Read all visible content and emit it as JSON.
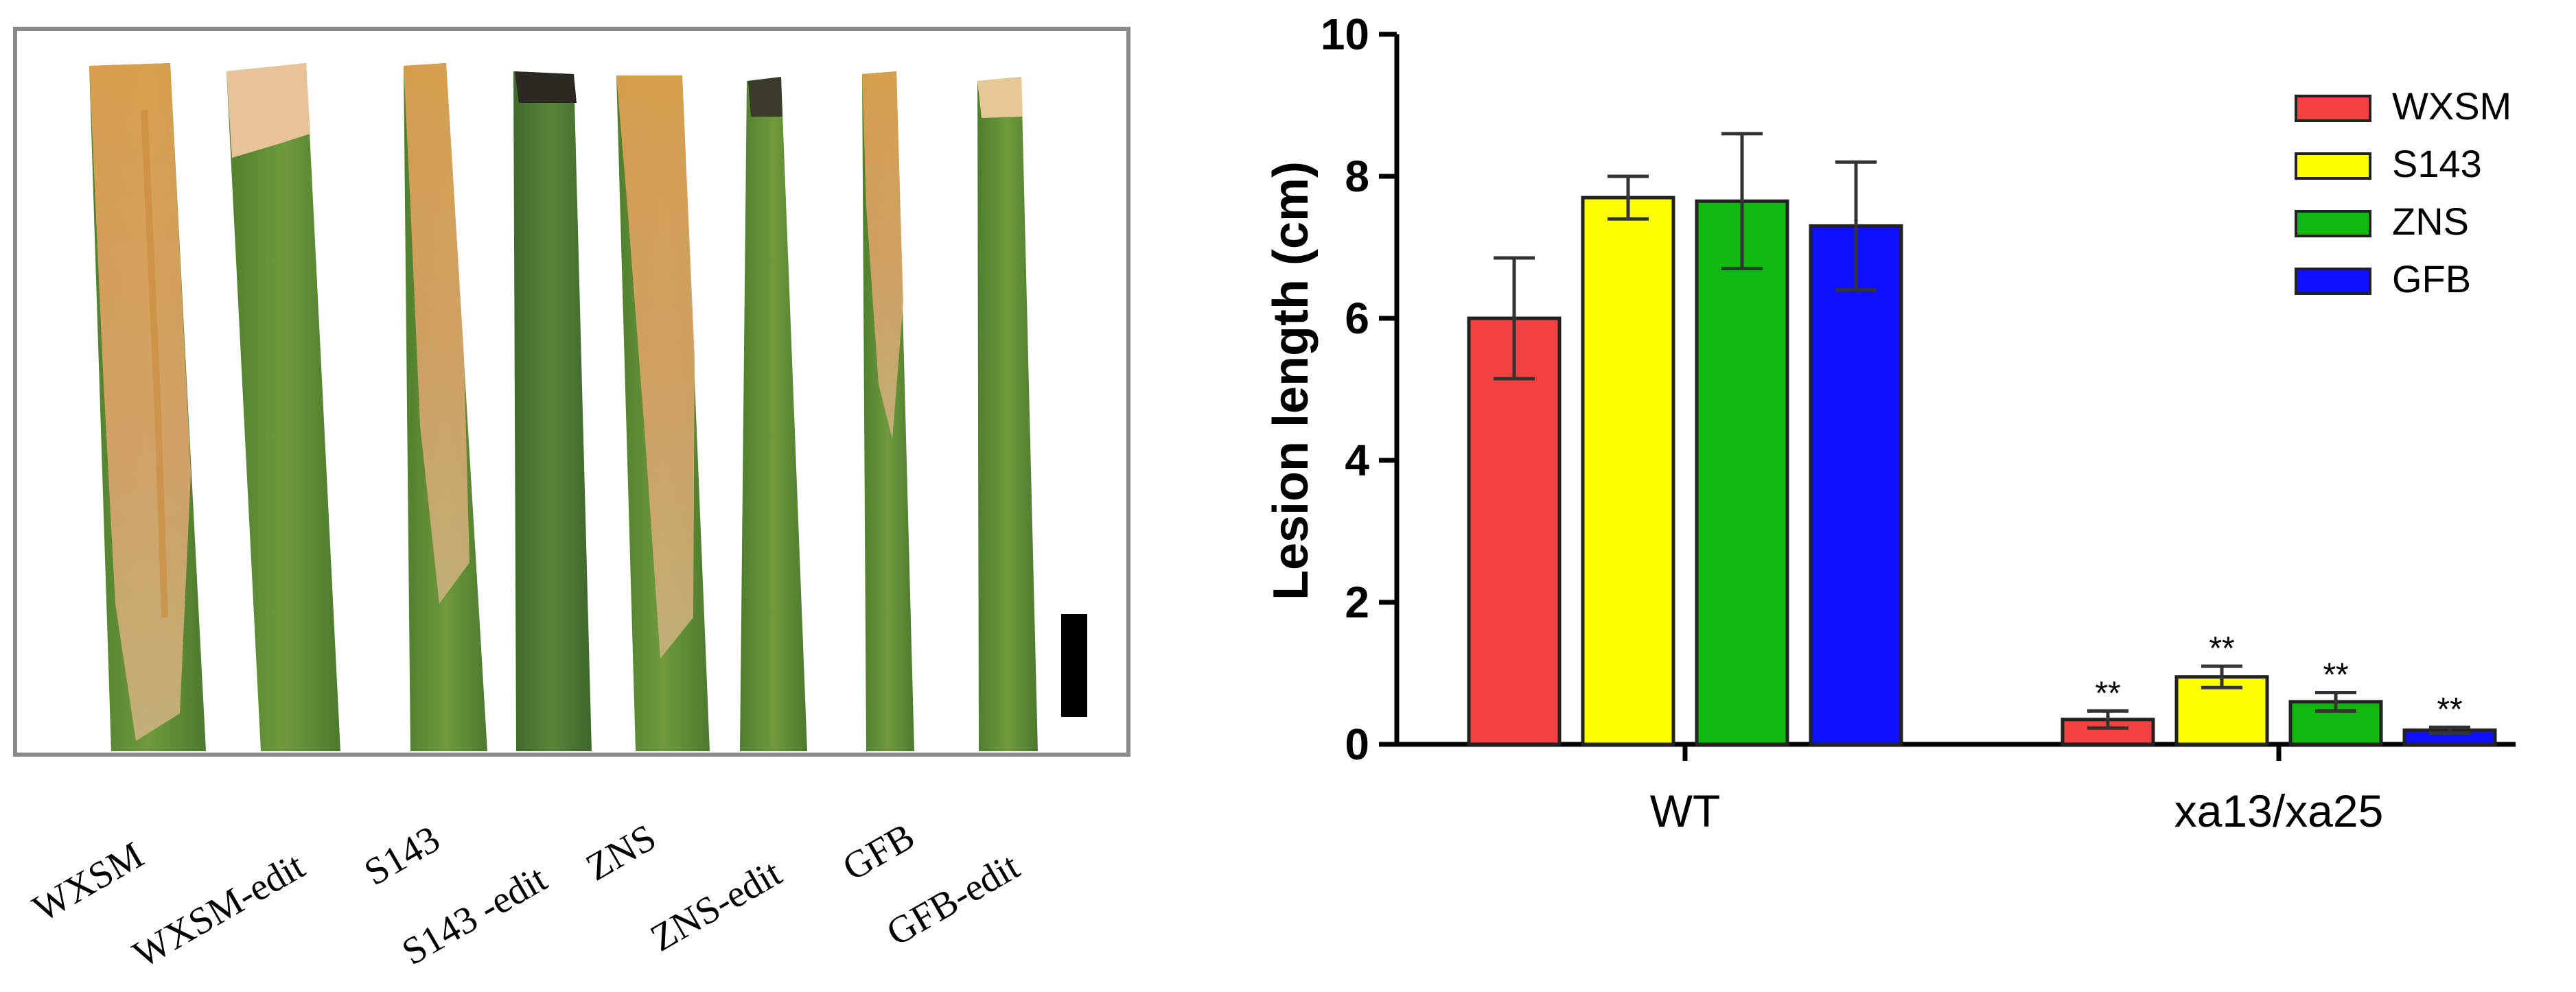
{
  "photo_panel": {
    "leaf_labels": [
      "WXSM",
      "WXSM-edit",
      "S143",
      "S143 -edit",
      "ZNS",
      "ZNS-edit",
      "GFB",
      "GFB-edit"
    ]
  },
  "chart_data": {
    "type": "bar",
    "title": "",
    "xlabel": "",
    "ylabel": "Lesion length (cm)",
    "ylim": [
      0,
      10
    ],
    "yticks": [
      "0",
      "2",
      "4",
      "6",
      "8",
      "10"
    ],
    "categories": [
      "WT",
      "xa13/xa25"
    ],
    "series": [
      {
        "name": "WXSM",
        "color": "#f34040",
        "values": [
          6.0,
          0.35
        ],
        "errors": [
          0.85,
          0.12
        ],
        "sig": [
          "",
          "**"
        ]
      },
      {
        "name": "S143",
        "color": "#ffff00",
        "values": [
          7.7,
          0.95
        ],
        "errors": [
          0.3,
          0.15
        ],
        "sig": [
          "",
          "**"
        ]
      },
      {
        "name": "ZNS",
        "color": "#10b810",
        "values": [
          7.65,
          0.6
        ],
        "errors": [
          0.95,
          0.13
        ],
        "sig": [
          "",
          "**"
        ]
      },
      {
        "name": "GFB",
        "color": "#1010ff",
        "values": [
          7.3,
          0.2
        ],
        "errors": [
          0.9,
          0.04
        ],
        "sig": [
          "",
          "**"
        ]
      }
    ],
    "legend": "top-right"
  }
}
